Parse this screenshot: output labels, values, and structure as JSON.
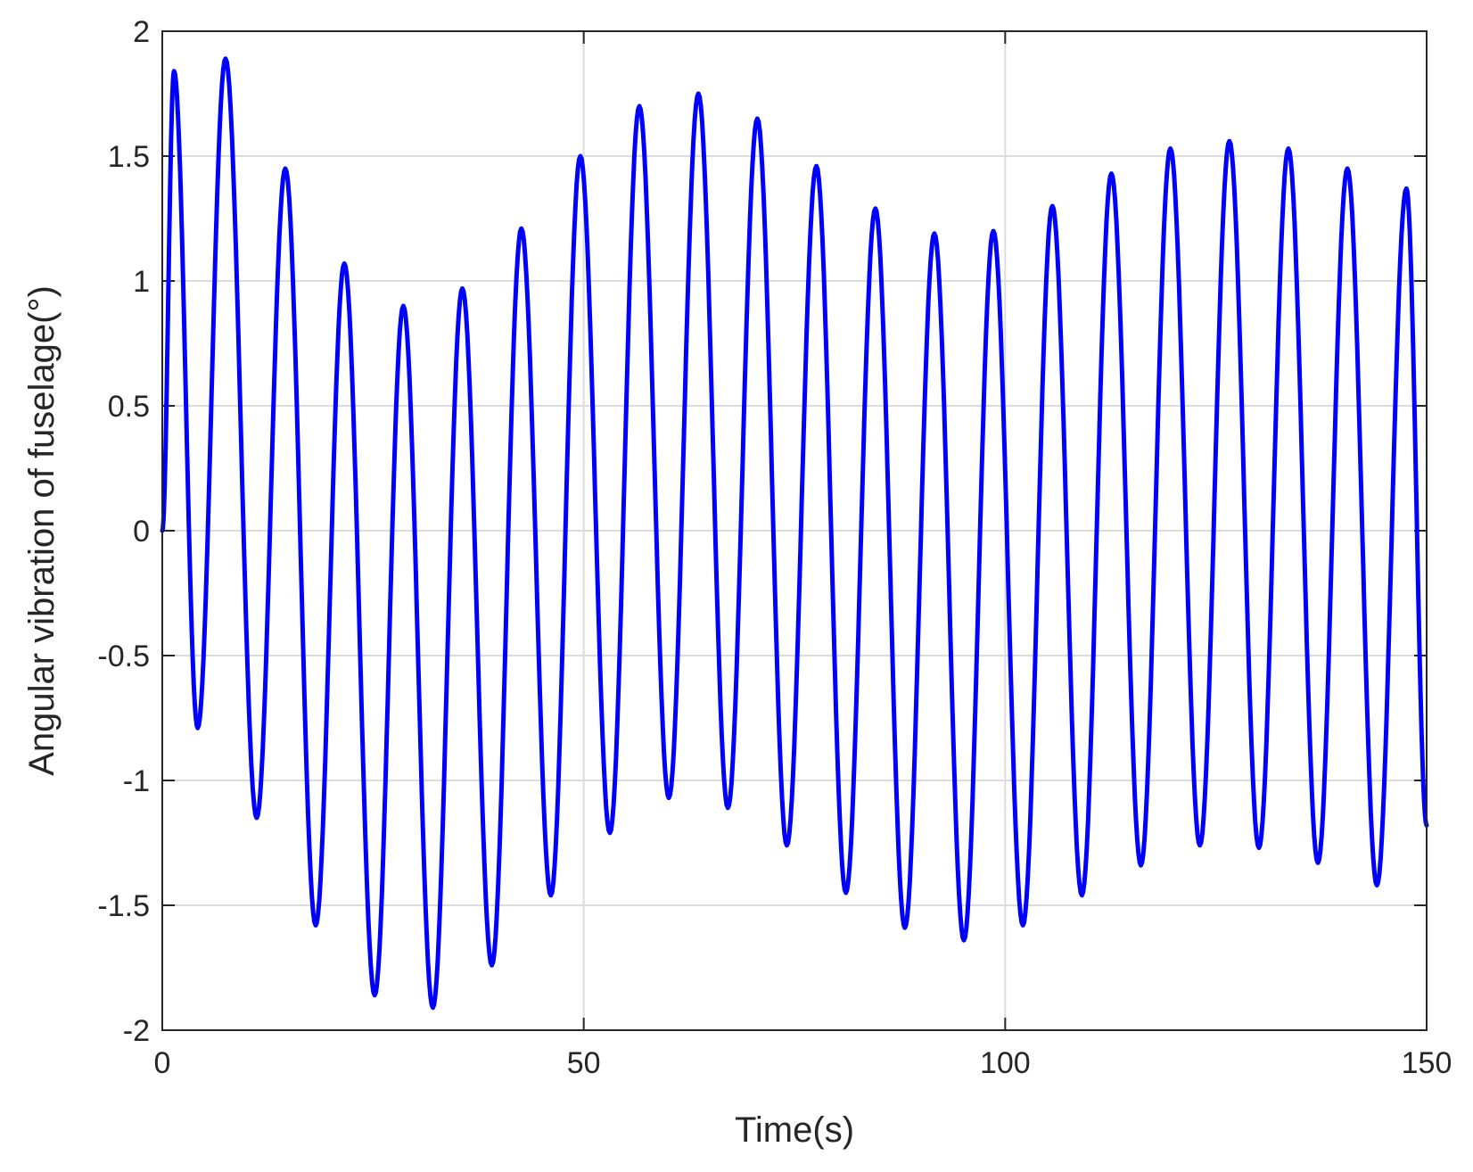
{
  "chart_data": {
    "type": "line",
    "xlabel": "Time(s)",
    "ylabel": "Angular vibration of fuselage(°)",
    "xlim": [
      0,
      150
    ],
    "ylim": [
      -2,
      2
    ],
    "x_ticks": [
      "0",
      "50",
      "100",
      "150"
    ],
    "y_ticks": [
      "-2",
      "-1.5",
      "-1",
      "-0.5",
      "0",
      "0.5",
      "1",
      "1.5",
      "2"
    ],
    "grid": true,
    "line_color": "#0000ff",
    "series": [
      {
        "x": [
          0,
          1.4,
          4.2,
          7.5,
          11.2,
          14.6,
          18.2,
          21.6,
          25.2,
          28.6,
          32.1,
          35.6,
          39.1,
          42.6,
          46.1,
          49.6,
          53.1,
          56.6,
          60.1,
          63.6,
          67.1,
          70.6,
          74.1,
          77.6,
          81.1,
          84.6,
          88.1,
          91.6,
          95.1,
          98.6,
          102.1,
          105.6,
          109.1,
          112.6,
          116.1,
          119.6,
          123.1,
          126.6,
          130.1,
          133.6,
          137.1,
          140.6,
          144.1,
          147.6,
          150
        ],
        "y": [
          0,
          1.84,
          -0.79,
          1.89,
          -1.15,
          1.45,
          -1.58,
          1.07,
          -1.86,
          0.9,
          -1.91,
          0.97,
          -1.74,
          1.21,
          -1.46,
          1.5,
          -1.21,
          1.7,
          -1.07,
          1.75,
          -1.11,
          1.65,
          -1.26,
          1.46,
          -1.45,
          1.29,
          -1.59,
          1.19,
          -1.64,
          1.2,
          -1.58,
          1.3,
          -1.46,
          1.43,
          -1.34,
          1.53,
          -1.26,
          1.56,
          -1.27,
          1.53,
          -1.33,
          1.45,
          -1.42,
          1.37,
          -1.18
        ]
      }
    ]
  }
}
